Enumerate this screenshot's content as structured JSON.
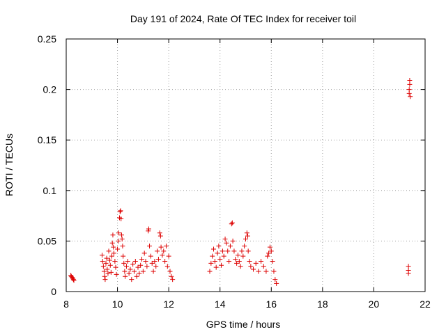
{
  "chart_data": {
    "type": "scatter",
    "title": "Day 191 of 2024, Rate Of TEC Index for receiver toil",
    "xlabel": "GPS time / hours",
    "ylabel": "ROTI / TECUs",
    "xlim": [
      8,
      22
    ],
    "ylim": [
      0,
      0.25
    ],
    "xticks": [
      8,
      10,
      12,
      14,
      16,
      18,
      20,
      22
    ],
    "yticks": [
      0,
      0.05,
      0.1,
      0.15,
      0.2,
      0.25
    ],
    "xtick_labels": [
      "8",
      "10",
      "12",
      "14",
      "16",
      "18",
      "20",
      "22"
    ],
    "ytick_labels": [
      "0",
      "0.05",
      "0.1",
      "0.15",
      "0.2",
      "0.25"
    ],
    "grid": true,
    "marker": "+",
    "color": "#dd0000",
    "series": [
      {
        "name": "ROTI",
        "points": [
          [
            8.18,
            0.016
          ],
          [
            8.2,
            0.015
          ],
          [
            8.23,
            0.014
          ],
          [
            8.26,
            0.013
          ],
          [
            8.28,
            0.012
          ],
          [
            8.3,
            0.011
          ],
          [
            9.4,
            0.036
          ],
          [
            9.42,
            0.03
          ],
          [
            9.45,
            0.025
          ],
          [
            9.48,
            0.02
          ],
          [
            9.5,
            0.015
          ],
          [
            9.52,
            0.012
          ],
          [
            9.55,
            0.028
          ],
          [
            9.58,
            0.033
          ],
          [
            9.6,
            0.022
          ],
          [
            9.63,
            0.018
          ],
          [
            9.66,
            0.04
          ],
          [
            9.7,
            0.031
          ],
          [
            9.72,
            0.026
          ],
          [
            9.75,
            0.019
          ],
          [
            9.78,
            0.035
          ],
          [
            9.8,
            0.048
          ],
          [
            9.82,
            0.056
          ],
          [
            9.84,
            0.044
          ],
          [
            9.86,
            0.038
          ],
          [
            9.9,
            0.03
          ],
          [
            9.93,
            0.024
          ],
          [
            9.96,
            0.017
          ],
          [
            10.0,
            0.042
          ],
          [
            10.03,
            0.05
          ],
          [
            10.05,
            0.058
          ],
          [
            10.08,
            0.073
          ],
          [
            10.1,
            0.079
          ],
          [
            10.12,
            0.08
          ],
          [
            10.14,
            0.072
          ],
          [
            10.16,
            0.056
          ],
          [
            10.18,
            0.052
          ],
          [
            10.2,
            0.045
          ],
          [
            10.22,
            0.035
          ],
          [
            10.25,
            0.028
          ],
          [
            10.28,
            0.02
          ],
          [
            10.3,
            0.015
          ],
          [
            10.35,
            0.025
          ],
          [
            10.4,
            0.03
          ],
          [
            10.45,
            0.018
          ],
          [
            10.5,
            0.022
          ],
          [
            10.55,
            0.012
          ],
          [
            10.6,
            0.027
          ],
          [
            10.65,
            0.02
          ],
          [
            10.7,
            0.03
          ],
          [
            10.75,
            0.015
          ],
          [
            10.8,
            0.024
          ],
          [
            10.85,
            0.018
          ],
          [
            10.9,
            0.026
          ],
          [
            10.95,
            0.032
          ],
          [
            11.0,
            0.02
          ],
          [
            11.05,
            0.038
          ],
          [
            11.1,
            0.03
          ],
          [
            11.15,
            0.025
          ],
          [
            11.2,
            0.06
          ],
          [
            11.22,
            0.062
          ],
          [
            11.25,
            0.045
          ],
          [
            11.3,
            0.035
          ],
          [
            11.35,
            0.028
          ],
          [
            11.4,
            0.02
          ],
          [
            11.45,
            0.03
          ],
          [
            11.5,
            0.025
          ],
          [
            11.55,
            0.04
          ],
          [
            11.6,
            0.032
          ],
          [
            11.65,
            0.058
          ],
          [
            11.68,
            0.055
          ],
          [
            11.7,
            0.044
          ],
          [
            11.75,
            0.036
          ],
          [
            11.8,
            0.04
          ],
          [
            11.85,
            0.03
          ],
          [
            11.9,
            0.045
          ],
          [
            11.95,
            0.025
          ],
          [
            12.0,
            0.035
          ],
          [
            12.05,
            0.02
          ],
          [
            12.1,
            0.015
          ],
          [
            12.15,
            0.012
          ],
          [
            13.6,
            0.02
          ],
          [
            13.65,
            0.028
          ],
          [
            13.7,
            0.035
          ],
          [
            13.75,
            0.042
          ],
          [
            13.8,
            0.03
          ],
          [
            13.85,
            0.024
          ],
          [
            13.9,
            0.038
          ],
          [
            13.95,
            0.045
          ],
          [
            14.0,
            0.032
          ],
          [
            14.05,
            0.026
          ],
          [
            14.1,
            0.04
          ],
          [
            14.15,
            0.035
          ],
          [
            14.2,
            0.052
          ],
          [
            14.25,
            0.048
          ],
          [
            14.3,
            0.04
          ],
          [
            14.35,
            0.03
          ],
          [
            14.4,
            0.045
          ],
          [
            14.45,
            0.067
          ],
          [
            14.48,
            0.068
          ],
          [
            14.5,
            0.05
          ],
          [
            14.55,
            0.04
          ],
          [
            14.6,
            0.032
          ],
          [
            14.65,
            0.028
          ],
          [
            14.7,
            0.036
          ],
          [
            14.75,
            0.03
          ],
          [
            14.8,
            0.025
          ],
          [
            14.85,
            0.04
          ],
          [
            14.9,
            0.035
          ],
          [
            14.95,
            0.045
          ],
          [
            15.0,
            0.052
          ],
          [
            15.05,
            0.058
          ],
          [
            15.08,
            0.055
          ],
          [
            15.1,
            0.04
          ],
          [
            15.15,
            0.03
          ],
          [
            15.2,
            0.025
          ],
          [
            15.3,
            0.022
          ],
          [
            15.4,
            0.028
          ],
          [
            15.5,
            0.02
          ],
          [
            15.6,
            0.03
          ],
          [
            15.7,
            0.025
          ],
          [
            15.8,
            0.02
          ],
          [
            15.85,
            0.035
          ],
          [
            15.9,
            0.038
          ],
          [
            15.95,
            0.044
          ],
          [
            16.0,
            0.04
          ],
          [
            16.05,
            0.03
          ],
          [
            16.1,
            0.02
          ],
          [
            16.15,
            0.012
          ],
          [
            16.2,
            0.008
          ],
          [
            21.35,
            0.025
          ],
          [
            21.35,
            0.021
          ],
          [
            21.35,
            0.018
          ],
          [
            21.38,
            0.2
          ],
          [
            21.38,
            0.196
          ],
          [
            21.4,
            0.209
          ],
          [
            21.4,
            0.205
          ],
          [
            21.42,
            0.193
          ]
        ]
      }
    ]
  }
}
